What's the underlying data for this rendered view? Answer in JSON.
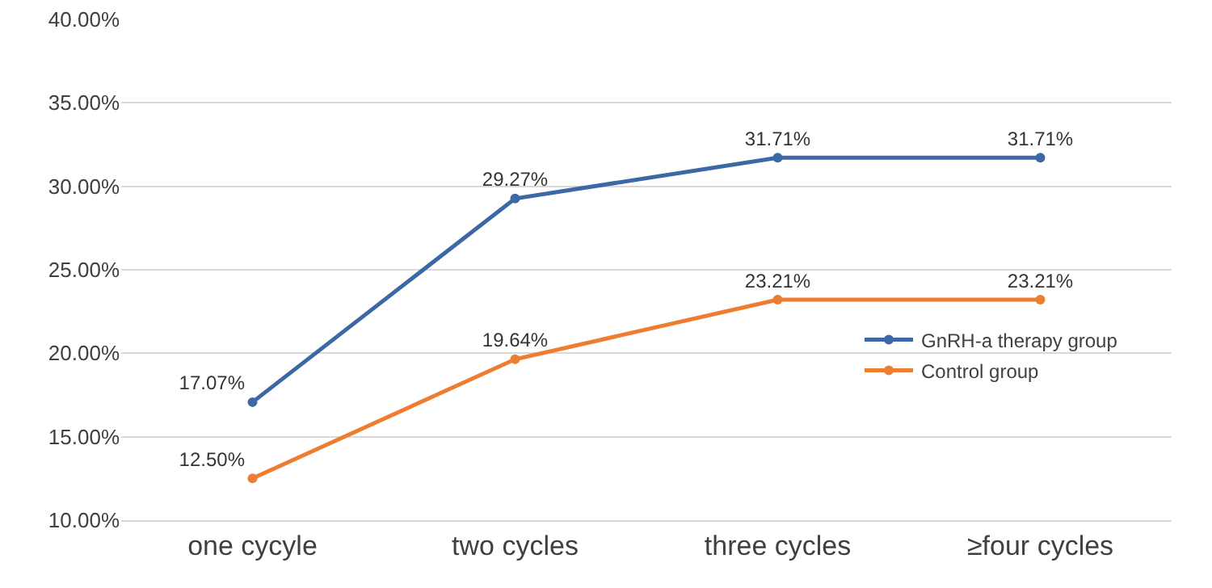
{
  "chart_data": {
    "type": "line",
    "categories": [
      "one cycyle",
      "two cycles",
      "three cycles",
      "≥four cycles"
    ],
    "series": [
      {
        "name": "GnRH-a therapy group",
        "color": "#3d68a6",
        "values": [
          17.07,
          29.27,
          31.71,
          31.71
        ],
        "value_labels": [
          "17.07%",
          "29.27%",
          "31.71%",
          "31.71%"
        ]
      },
      {
        "name": "Control group",
        "color": "#ed7d31",
        "values": [
          12.5,
          19.64,
          23.21,
          23.21
        ],
        "value_labels": [
          "12.50%",
          "19.64%",
          "23.21%",
          "23.21%"
        ]
      }
    ],
    "ylim": [
      10,
      40
    ],
    "yticks": [
      {
        "value": 10,
        "label": "10.00%"
      },
      {
        "value": 15,
        "label": "15.00%"
      },
      {
        "value": 20,
        "label": "20.00%"
      },
      {
        "value": 25,
        "label": "25.00%"
      },
      {
        "value": 30,
        "label": "30.00%"
      },
      {
        "value": 35,
        "label": "35.00%"
      },
      {
        "value": 40,
        "label": "40.00%"
      }
    ],
    "grid": "y",
    "legend": "right",
    "marker": "circle",
    "line_style": "solid"
  }
}
